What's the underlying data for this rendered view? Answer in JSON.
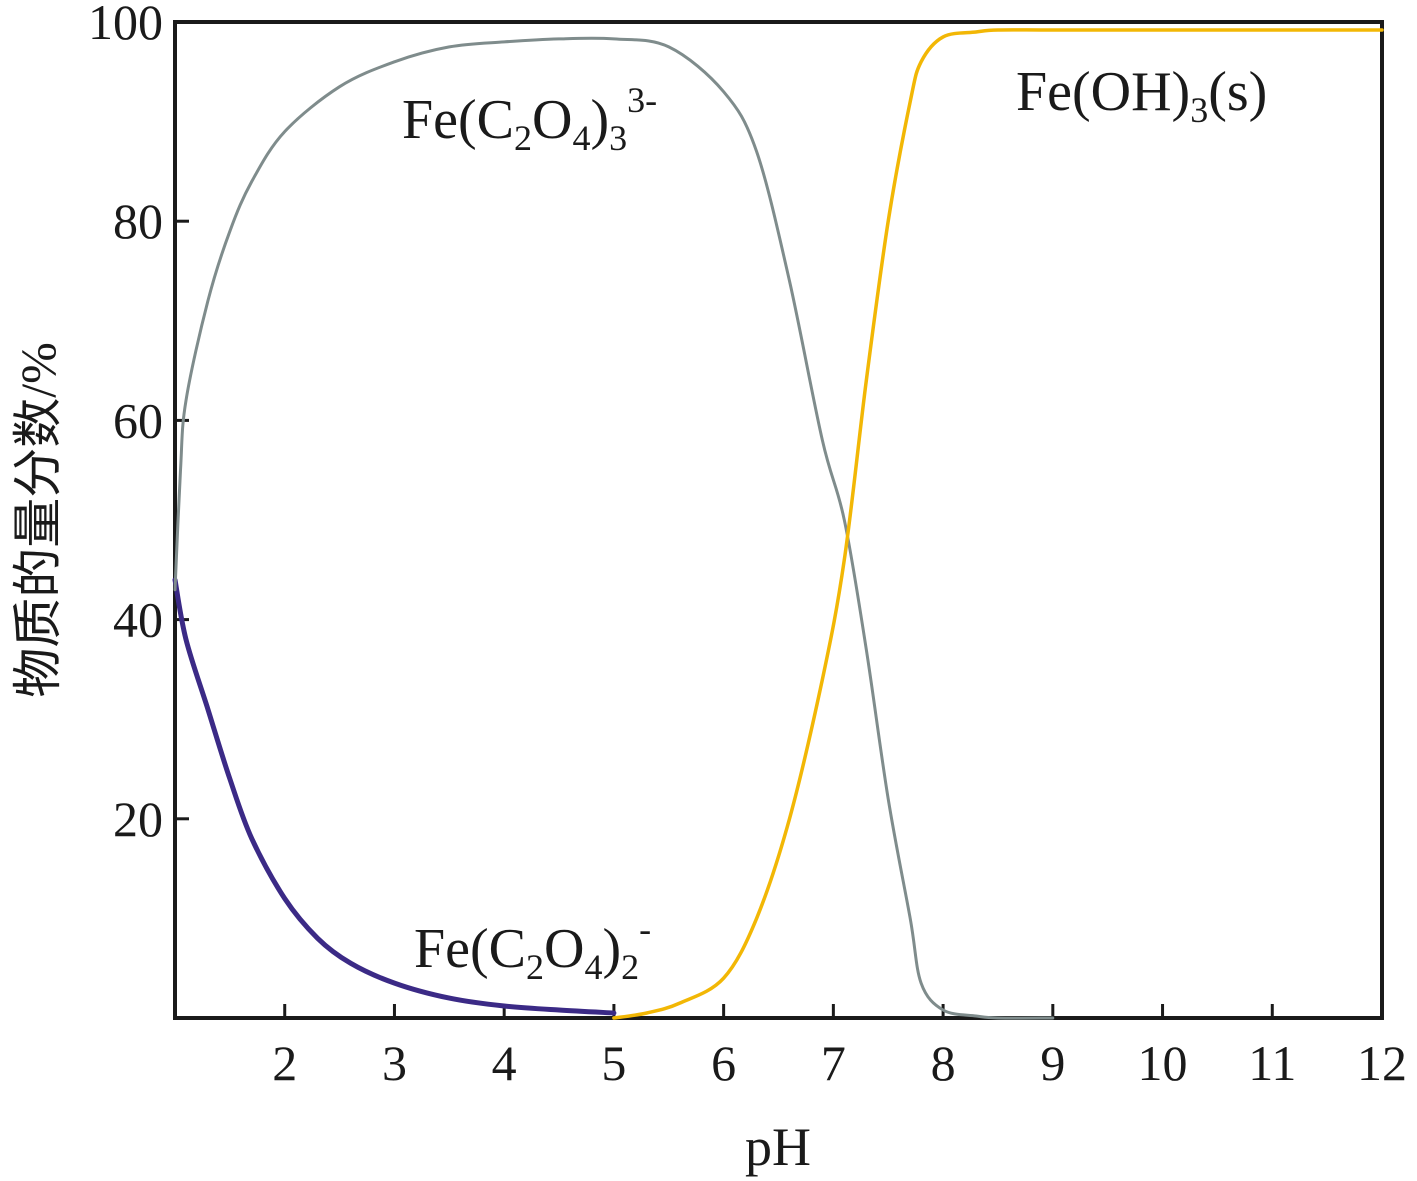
{
  "chart_data": {
    "type": "line",
    "xlabel": "pH",
    "ylabel": "物质的量分数/%",
    "xlim": [
      1,
      12
    ],
    "ylim": [
      0,
      100
    ],
    "x_ticks": [
      2,
      3,
      4,
      5,
      6,
      7,
      8,
      9,
      10,
      11,
      12
    ],
    "y_ticks": [
      20,
      40,
      60,
      80,
      100
    ],
    "grid": false,
    "series": [
      {
        "name": "Fe(C2O4)2-",
        "color": "#3b2a86",
        "x": [
          1.0,
          1.1,
          1.3,
          1.5,
          1.7,
          2.0,
          2.3,
          2.6,
          3.0,
          3.5,
          4.0,
          4.5,
          5.0
        ],
        "y": [
          44,
          38,
          31,
          24,
          18,
          12,
          8,
          5.5,
          3.5,
          2,
          1.2,
          0.8,
          0.5
        ]
      },
      {
        "name": "Fe(C2O4)3 3-",
        "color": "#7f8c8c",
        "x": [
          1.0,
          1.05,
          1.1,
          1.3,
          1.5,
          1.7,
          2.0,
          2.5,
          3.0,
          3.5,
          4.0,
          4.5,
          5.0,
          5.5,
          6.0,
          6.3,
          6.6,
          6.9,
          7.1,
          7.3,
          7.5,
          7.7,
          7.8,
          8.0,
          8.3,
          8.5,
          9.0
        ],
        "y": [
          43,
          55,
          62,
          72,
          79,
          84,
          89,
          93.5,
          96,
          97.5,
          98,
          98.3,
          98.3,
          97.5,
          93,
          87,
          74,
          58,
          50,
          37,
          22,
          10,
          3.5,
          0.8,
          0.2,
          0,
          0
        ]
      },
      {
        "name": "Fe(OH)3(s)",
        "color": "#f2b705",
        "x": [
          5.0,
          5.3,
          5.6,
          6.0,
          6.3,
          6.6,
          6.9,
          7.1,
          7.3,
          7.5,
          7.7,
          7.8,
          8.0,
          8.3,
          8.5,
          9.0,
          10.0,
          11.0,
          12.0
        ],
        "y": [
          0,
          0.5,
          1.5,
          4,
          10,
          20,
          34,
          46,
          64,
          80,
          92,
          96,
          98.5,
          99,
          99.2,
          99.2,
          99.2,
          99.2,
          99.2
        ]
      }
    ],
    "annotations": [
      {
        "text_parts": [
          "Fe(C",
          "2",
          "O",
          "4",
          ")",
          "3",
          "3-"
        ],
        "near": [
          4.0,
          92
        ]
      },
      {
        "text_parts": [
          "Fe(C",
          "2",
          "O",
          "4",
          ")",
          "2",
          "-"
        ],
        "near": [
          4.5,
          7
        ]
      },
      {
        "text_parts": [
          "Fe(OH)",
          "3",
          "(s)"
        ],
        "near": [
          10.0,
          93
        ]
      }
    ]
  }
}
